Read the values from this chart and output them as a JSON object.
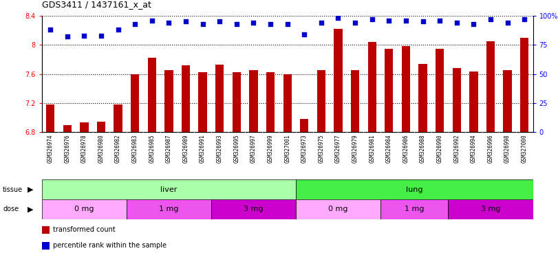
{
  "title": "GDS3411 / 1437161_x_at",
  "samples": [
    "GSM326974",
    "GSM326976",
    "GSM326978",
    "GSM326980",
    "GSM326982",
    "GSM326983",
    "GSM326985",
    "GSM326987",
    "GSM326989",
    "GSM326991",
    "GSM326993",
    "GSM326995",
    "GSM326997",
    "GSM326999",
    "GSM327001",
    "GSM326973",
    "GSM326975",
    "GSM326977",
    "GSM326979",
    "GSM326981",
    "GSM326984",
    "GSM326986",
    "GSM326988",
    "GSM326990",
    "GSM326992",
    "GSM326994",
    "GSM326996",
    "GSM326998",
    "GSM327000"
  ],
  "bar_values": [
    7.18,
    6.89,
    6.93,
    6.94,
    7.18,
    7.6,
    7.82,
    7.65,
    7.72,
    7.62,
    7.73,
    7.62,
    7.65,
    7.62,
    7.6,
    6.98,
    7.65,
    8.22,
    7.65,
    8.04,
    7.95,
    7.98,
    7.74,
    7.95,
    7.68,
    7.63,
    8.05,
    7.65,
    8.1
  ],
  "percentile_values": [
    88,
    82,
    83,
    83,
    88,
    93,
    96,
    94,
    95,
    93,
    95,
    93,
    94,
    93,
    93,
    84,
    94,
    98,
    94,
    97,
    96,
    96,
    95,
    96,
    94,
    93,
    97,
    94,
    97
  ],
  "ymin": 6.8,
  "ymax": 8.4,
  "ylim_left": [
    6.8,
    8.4
  ],
  "ylim_right": [
    0,
    100
  ],
  "yticks_left": [
    6.8,
    7.2,
    7.6,
    8.0,
    8.4
  ],
  "yticks_right": [
    0,
    25,
    50,
    75,
    100
  ],
  "ytick_labels_left": [
    "6.8",
    "7.2",
    "7.6",
    "8",
    "8.4"
  ],
  "ytick_labels_right": [
    "0",
    "25",
    "50",
    "75",
    "100%"
  ],
  "bar_color": "#BB0000",
  "dot_color": "#0000CC",
  "tissue_groups": [
    {
      "label": "liver",
      "start": 0,
      "end": 14,
      "color": "#AAFFAA"
    },
    {
      "label": "lung",
      "start": 15,
      "end": 28,
      "color": "#44EE44"
    }
  ],
  "dose_groups": [
    {
      "label": "0 mg",
      "start": 0,
      "end": 4,
      "color": "#FFAAFF"
    },
    {
      "label": "1 mg",
      "start": 5,
      "end": 9,
      "color": "#EE55EE"
    },
    {
      "label": "3 mg",
      "start": 10,
      "end": 14,
      "color": "#CC00CC"
    },
    {
      "label": "0 mg",
      "start": 15,
      "end": 19,
      "color": "#FFAAFF"
    },
    {
      "label": "1 mg",
      "start": 20,
      "end": 23,
      "color": "#EE55EE"
    },
    {
      "label": "3 mg",
      "start": 24,
      "end": 28,
      "color": "#CC00CC"
    }
  ],
  "legend_items": [
    {
      "label": "transformed count",
      "color": "#BB0000"
    },
    {
      "label": "percentile rank within the sample",
      "color": "#0000CC"
    }
  ],
  "plot_bg": "#FFFFFF",
  "xtick_area_bg": "#DDDDDD",
  "title_fontsize": 9,
  "axis_fontsize": 7,
  "bar_width": 0.5,
  "dot_size": 18
}
